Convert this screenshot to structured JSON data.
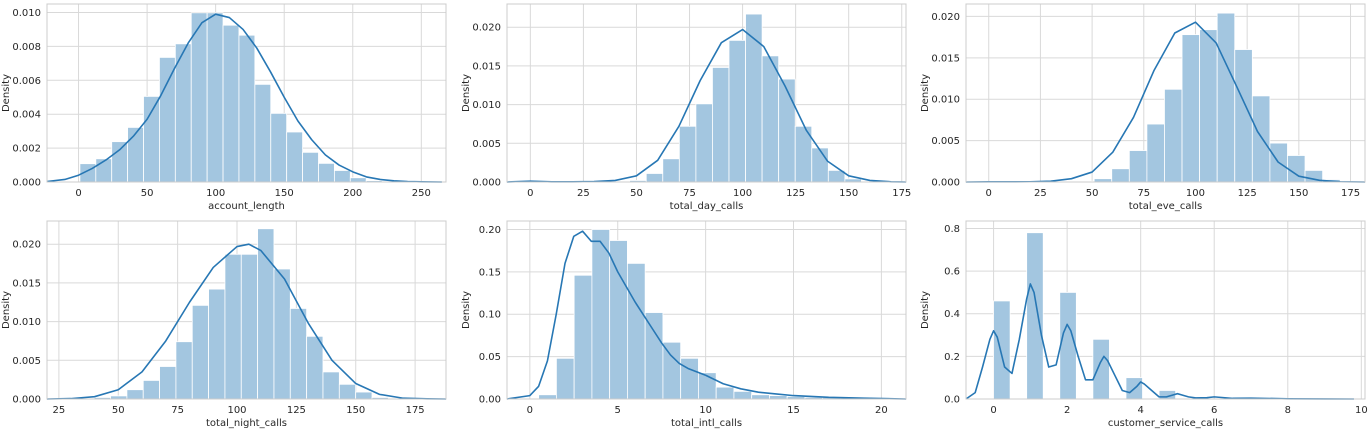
{
  "chart_data": [
    {
      "type": "histogram",
      "xlabel": "account_length",
      "ylabel": "Density",
      "xlim": [
        -23,
        268
      ],
      "ylim": [
        0,
        0.0105
      ],
      "xticks": [
        0,
        50,
        100,
        150,
        200,
        250
      ],
      "yticks": [
        0,
        0.002,
        0.004,
        0.006,
        0.008,
        0.01
      ],
      "ytick_labels": [
        "0.000",
        "0.002",
        "0.004",
        "0.006",
        "0.008",
        "0.010"
      ],
      "grid": true,
      "bins": {
        "start": 1,
        "width": 11.6,
        "values": [
          0.00108,
          0.00137,
          0.00238,
          0.00322,
          0.00505,
          0.00735,
          0.00815,
          0.00998,
          0.00998,
          0.00925,
          0.00866,
          0.00576,
          0.00405,
          0.00295,
          0.00175,
          0.0011,
          0.00068,
          0.00025,
          8e-05
        ]
      },
      "kde": {
        "x": [
          -23,
          -10,
          0,
          10,
          20,
          30,
          40,
          50,
          60,
          70,
          80,
          90,
          100,
          110,
          120,
          130,
          140,
          150,
          160,
          170,
          180,
          190,
          200,
          210,
          220,
          230,
          240,
          250,
          265
        ],
        "y": [
          3e-05,
          0.00015,
          0.0004,
          0.0008,
          0.0013,
          0.0019,
          0.0027,
          0.0037,
          0.0051,
          0.0067,
          0.0082,
          0.0094,
          0.0099,
          0.0097,
          0.009,
          0.0079,
          0.0065,
          0.005,
          0.0036,
          0.0025,
          0.0016,
          0.001,
          0.0006,
          0.0003,
          0.00015,
          7e-05,
          3e-05,
          1e-05,
          0.0
        ]
      }
    },
    {
      "type": "histogram",
      "xlabel": "total_day_calls",
      "ylabel": "Density",
      "xlim": [
        -11,
        177
      ],
      "ylim": [
        0,
        0.023
      ],
      "xticks": [
        0,
        25,
        50,
        75,
        100,
        125,
        150,
        175
      ],
      "yticks": [
        0,
        0.005,
        0.01,
        0.015,
        0.02
      ],
      "ytick_labels": [
        "0.000",
        "0.005",
        "0.010",
        "0.015",
        "0.020"
      ],
      "grid": true,
      "bins": {
        "start": 0,
        "width": 7.8,
        "values": [
          0.0001,
          0,
          0,
          0,
          0,
          0,
          0.0002,
          0.0011,
          0.003,
          0.0072,
          0.0101,
          0.0148,
          0.0183,
          0.0217,
          0.0163,
          0.0133,
          0.0072,
          0.0044,
          0.0015,
          0.0004
        ]
      },
      "kde": {
        "x": [
          -11,
          0,
          10,
          20,
          30,
          40,
          50,
          60,
          70,
          80,
          90,
          100,
          110,
          120,
          130,
          140,
          150,
          160,
          170,
          177
        ],
        "y": [
          0.0,
          0.0001,
          3e-05,
          2e-05,
          5e-05,
          0.0002,
          0.0008,
          0.0028,
          0.0072,
          0.0131,
          0.018,
          0.0197,
          0.0175,
          0.0124,
          0.0067,
          0.0027,
          0.0008,
          0.0002,
          3e-05,
          0.0
        ]
      }
    },
    {
      "type": "histogram",
      "xlabel": "total_eve_calls",
      "ylabel": "Density",
      "xlim": [
        -11,
        182
      ],
      "ylim": [
        0,
        0.0215
      ],
      "xticks": [
        0,
        25,
        50,
        75,
        100,
        125,
        150,
        175
      ],
      "yticks": [
        0,
        0.005,
        0.01,
        0.015,
        0.02
      ],
      "ytick_labels": [
        "0.000",
        "0.005",
        "0.010",
        "0.015",
        "0.020"
      ],
      "grid": true,
      "bins": {
        "start": 0,
        "width": 8.5,
        "values": [
          0,
          0,
          0,
          0,
          0,
          0.0001,
          0.0004,
          0.0016,
          0.0038,
          0.007,
          0.0112,
          0.0178,
          0.0184,
          0.0204,
          0.016,
          0.0104,
          0.0047,
          0.0032,
          0.0014,
          0.0003
        ]
      },
      "kde": {
        "x": [
          -11,
          0,
          10,
          20,
          30,
          40,
          50,
          60,
          70,
          80,
          90,
          100,
          110,
          120,
          130,
          140,
          150,
          160,
          170,
          182
        ],
        "y": [
          0.0,
          2e-05,
          2e-05,
          3e-05,
          0.0001,
          0.0004,
          0.0012,
          0.0036,
          0.0078,
          0.0135,
          0.018,
          0.0193,
          0.0168,
          0.0115,
          0.0061,
          0.0024,
          0.0007,
          0.0002,
          3e-05,
          0.0
        ]
      }
    },
    {
      "type": "histogram",
      "xlabel": "total_night_calls",
      "ylabel": "Density",
      "xlim": [
        20,
        188
      ],
      "ylim": [
        0,
        0.023
      ],
      "xticks": [
        25,
        50,
        75,
        100,
        125,
        150,
        175
      ],
      "yticks": [
        0,
        0.005,
        0.01,
        0.015,
        0.02
      ],
      "ytick_labels": [
        "0.000",
        "0.005",
        "0.010",
        "0.015",
        "0.020"
      ],
      "grid": true,
      "bins": {
        "start": 33,
        "width": 6.88,
        "values": [
          0.0001,
          0.0002,
          0.0004,
          0.0012,
          0.0024,
          0.0042,
          0.0074,
          0.0121,
          0.0142,
          0.0187,
          0.0187,
          0.022,
          0.0168,
          0.0117,
          0.0081,
          0.0035,
          0.0019,
          0.0009,
          0.0002,
          0.0001
        ]
      },
      "kde": {
        "x": [
          20,
          30,
          40,
          50,
          60,
          70,
          80,
          90,
          100,
          105,
          110,
          120,
          130,
          140,
          150,
          160,
          170,
          180,
          188
        ],
        "y": [
          0.0,
          5e-05,
          0.0003,
          0.0012,
          0.0035,
          0.0075,
          0.0125,
          0.017,
          0.0197,
          0.02,
          0.0192,
          0.0155,
          0.0098,
          0.005,
          0.002,
          0.0006,
          0.0001,
          2e-05,
          0.0
        ]
      }
    },
    {
      "type": "histogram",
      "xlabel": "total_intl_calls",
      "ylabel": "Density",
      "xlim": [
        -1.3,
        21.4
      ],
      "ylim": [
        0,
        0.21
      ],
      "xticks": [
        0,
        5,
        10,
        15,
        20
      ],
      "yticks": [
        0,
        0.05,
        0.1,
        0.15,
        0.2
      ],
      "ytick_labels": [
        "0.00",
        "0.05",
        "0.10",
        "0.15",
        "0.20"
      ],
      "grid": true,
      "bins": {
        "start": 0.5,
        "width": 1.01,
        "values": [
          0.005,
          0.048,
          0.146,
          0.2,
          0.187,
          0.16,
          0.102,
          0.067,
          0.048,
          0.031,
          0.014,
          0.009,
          0.005,
          0.004,
          0.003,
          0.002,
          0.002,
          0.001,
          0.001,
          0.0005
        ]
      },
      "kde": {
        "x": [
          -1.3,
          0,
          0.5,
          1,
          1.5,
          2,
          2.5,
          3,
          3.5,
          4,
          4.5,
          5,
          5.5,
          6,
          6.5,
          7,
          7.5,
          8,
          8.5,
          9,
          10,
          11,
          12,
          13,
          14,
          15,
          17,
          19,
          21.4
        ],
        "y": [
          0.0,
          0.004,
          0.015,
          0.045,
          0.1,
          0.16,
          0.192,
          0.198,
          0.186,
          0.186,
          0.172,
          0.15,
          0.132,
          0.114,
          0.098,
          0.082,
          0.066,
          0.052,
          0.042,
          0.036,
          0.028,
          0.018,
          0.012,
          0.008,
          0.006,
          0.004,
          0.002,
          0.001,
          0.0
        ]
      }
    },
    {
      "type": "histogram",
      "xlabel": "customer_service_calls",
      "ylabel": "Density",
      "xlim": [
        -0.75,
        10.1
      ],
      "ylim": [
        0,
        0.835
      ],
      "xticks": [
        0,
        2,
        4,
        6,
        8,
        10
      ],
      "yticks": [
        0,
        0.2,
        0.4,
        0.6,
        0.8
      ],
      "ytick_labels": [
        "0.0",
        "0.2",
        "0.4",
        "0.6",
        "0.8"
      ],
      "grid": true,
      "bins": {
        "start": 0,
        "width": 0.45,
        "values": [
          0.46,
          0,
          0.78,
          0,
          0.5,
          0,
          0.28,
          0,
          0.1,
          0,
          0.04,
          0,
          0.01,
          0,
          0.005,
          0,
          0,
          0,
          0,
          0.002
        ]
      },
      "kde": {
        "x": [
          -0.75,
          -0.5,
          -0.3,
          -0.1,
          0,
          0.1,
          0.3,
          0.5,
          0.7,
          0.9,
          1.0,
          1.1,
          1.3,
          1.5,
          1.7,
          1.9,
          2.0,
          2.1,
          2.3,
          2.5,
          2.7,
          2.9,
          3.0,
          3.1,
          3.3,
          3.5,
          3.7,
          3.9,
          4.0,
          4.1,
          4.3,
          4.5,
          4.7,
          4.9,
          5.0,
          5.1,
          5.3,
          5.5,
          5.8,
          6.0,
          6.5,
          7.0,
          8.0,
          9.0,
          9.8
        ],
        "y": [
          0.0,
          0.03,
          0.15,
          0.28,
          0.32,
          0.29,
          0.15,
          0.12,
          0.28,
          0.47,
          0.54,
          0.5,
          0.3,
          0.15,
          0.16,
          0.31,
          0.35,
          0.32,
          0.2,
          0.09,
          0.09,
          0.17,
          0.2,
          0.18,
          0.11,
          0.04,
          0.03,
          0.06,
          0.08,
          0.07,
          0.04,
          0.01,
          0.01,
          0.02,
          0.025,
          0.02,
          0.01,
          0.005,
          0.006,
          0.01,
          0.003,
          0.004,
          0.001,
          0.0005,
          0.0
        ]
      }
    }
  ]
}
